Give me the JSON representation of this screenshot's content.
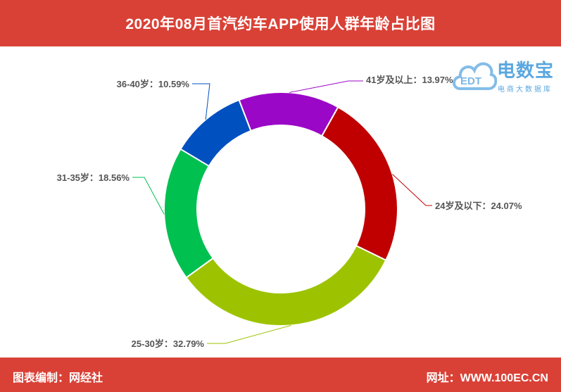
{
  "header": {
    "title": "2020年08月首汽约车APP使用人群年龄占比图"
  },
  "footer": {
    "left": "图表编制：网经社",
    "right": "网址：WWW.100EC.CN"
  },
  "watermark": {
    "brand": "电数宝",
    "sub": "电商大数据库",
    "badge": "EDT"
  },
  "colors": {
    "header_bg": "#d94136"
  },
  "chart_data": {
    "type": "pie",
    "donut": true,
    "title": "2020年08月首汽约车APP使用人群年龄占比图",
    "unit": "%",
    "slices": [
      {
        "label": "41岁及以上",
        "value": 13.97,
        "text": "41岁及以上：13.97%",
        "color": "#9b07c7"
      },
      {
        "label": "24岁及以下",
        "value": 24.07,
        "text": "24岁及以下：24.07%",
        "color": "#c00000"
      },
      {
        "label": "25-30岁",
        "value": 32.79,
        "text": "25-30岁：32.79%",
        "color": "#9dc300"
      },
      {
        "label": "31-35岁",
        "value": 18.56,
        "text": "31-35岁：18.56%",
        "color": "#00c050"
      },
      {
        "label": "36-40岁",
        "value": 10.59,
        "text": "36-40岁：10.59%",
        "color": "#0050c0"
      }
    ]
  }
}
